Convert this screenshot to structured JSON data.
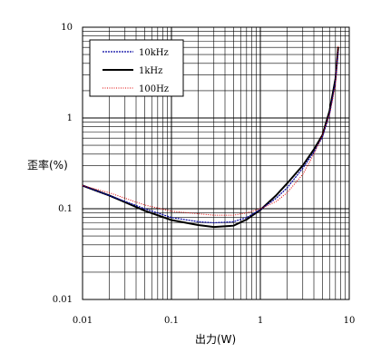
{
  "chart_data": {
    "type": "line",
    "xlabel": "出力(W)",
    "ylabel": "歪率(%)",
    "xscale": "log",
    "yscale": "log",
    "xlim": [
      0.01,
      10
    ],
    "ylim": [
      0.01,
      10
    ],
    "grid": true,
    "legend_position": "top-left",
    "x_tick_labels": [
      "0.01",
      "0.1",
      "1",
      "10"
    ],
    "y_tick_labels": [
      "0.01",
      "0.1",
      "1",
      "10"
    ],
    "series": [
      {
        "name": "10kHz",
        "color": "#0000a0",
        "style": "dashed",
        "x": [
          0.01,
          0.02,
          0.05,
          0.1,
          0.2,
          0.3,
          0.5,
          0.7,
          1,
          1.5,
          2,
          3,
          4,
          5,
          6,
          7,
          7.5
        ],
        "y": [
          0.18,
          0.14,
          0.1,
          0.08,
          0.072,
          0.07,
          0.072,
          0.08,
          0.098,
          0.13,
          0.17,
          0.28,
          0.42,
          0.62,
          1.1,
          2.5,
          5.5
        ]
      },
      {
        "name": "1kHz",
        "color": "#000000",
        "style": "solid",
        "x": [
          0.01,
          0.02,
          0.05,
          0.1,
          0.2,
          0.3,
          0.5,
          0.7,
          1,
          1.5,
          2,
          3,
          4,
          5,
          6,
          7,
          7.5
        ],
        "y": [
          0.18,
          0.14,
          0.095,
          0.075,
          0.066,
          0.063,
          0.065,
          0.076,
          0.097,
          0.14,
          0.19,
          0.3,
          0.45,
          0.65,
          1.2,
          2.7,
          6.0
        ]
      },
      {
        "name": "100Hz",
        "color": "#e00000",
        "style": "dotted",
        "x": [
          0.01,
          0.02,
          0.05,
          0.1,
          0.2,
          0.3,
          0.5,
          0.7,
          1,
          1.5,
          2,
          3,
          4,
          5,
          6,
          7,
          7.5
        ],
        "y": [
          0.18,
          0.15,
          0.11,
          0.094,
          0.088,
          0.085,
          0.085,
          0.09,
          0.1,
          0.12,
          0.15,
          0.24,
          0.4,
          0.65,
          1.1,
          2.3,
          6.2
        ]
      }
    ]
  }
}
